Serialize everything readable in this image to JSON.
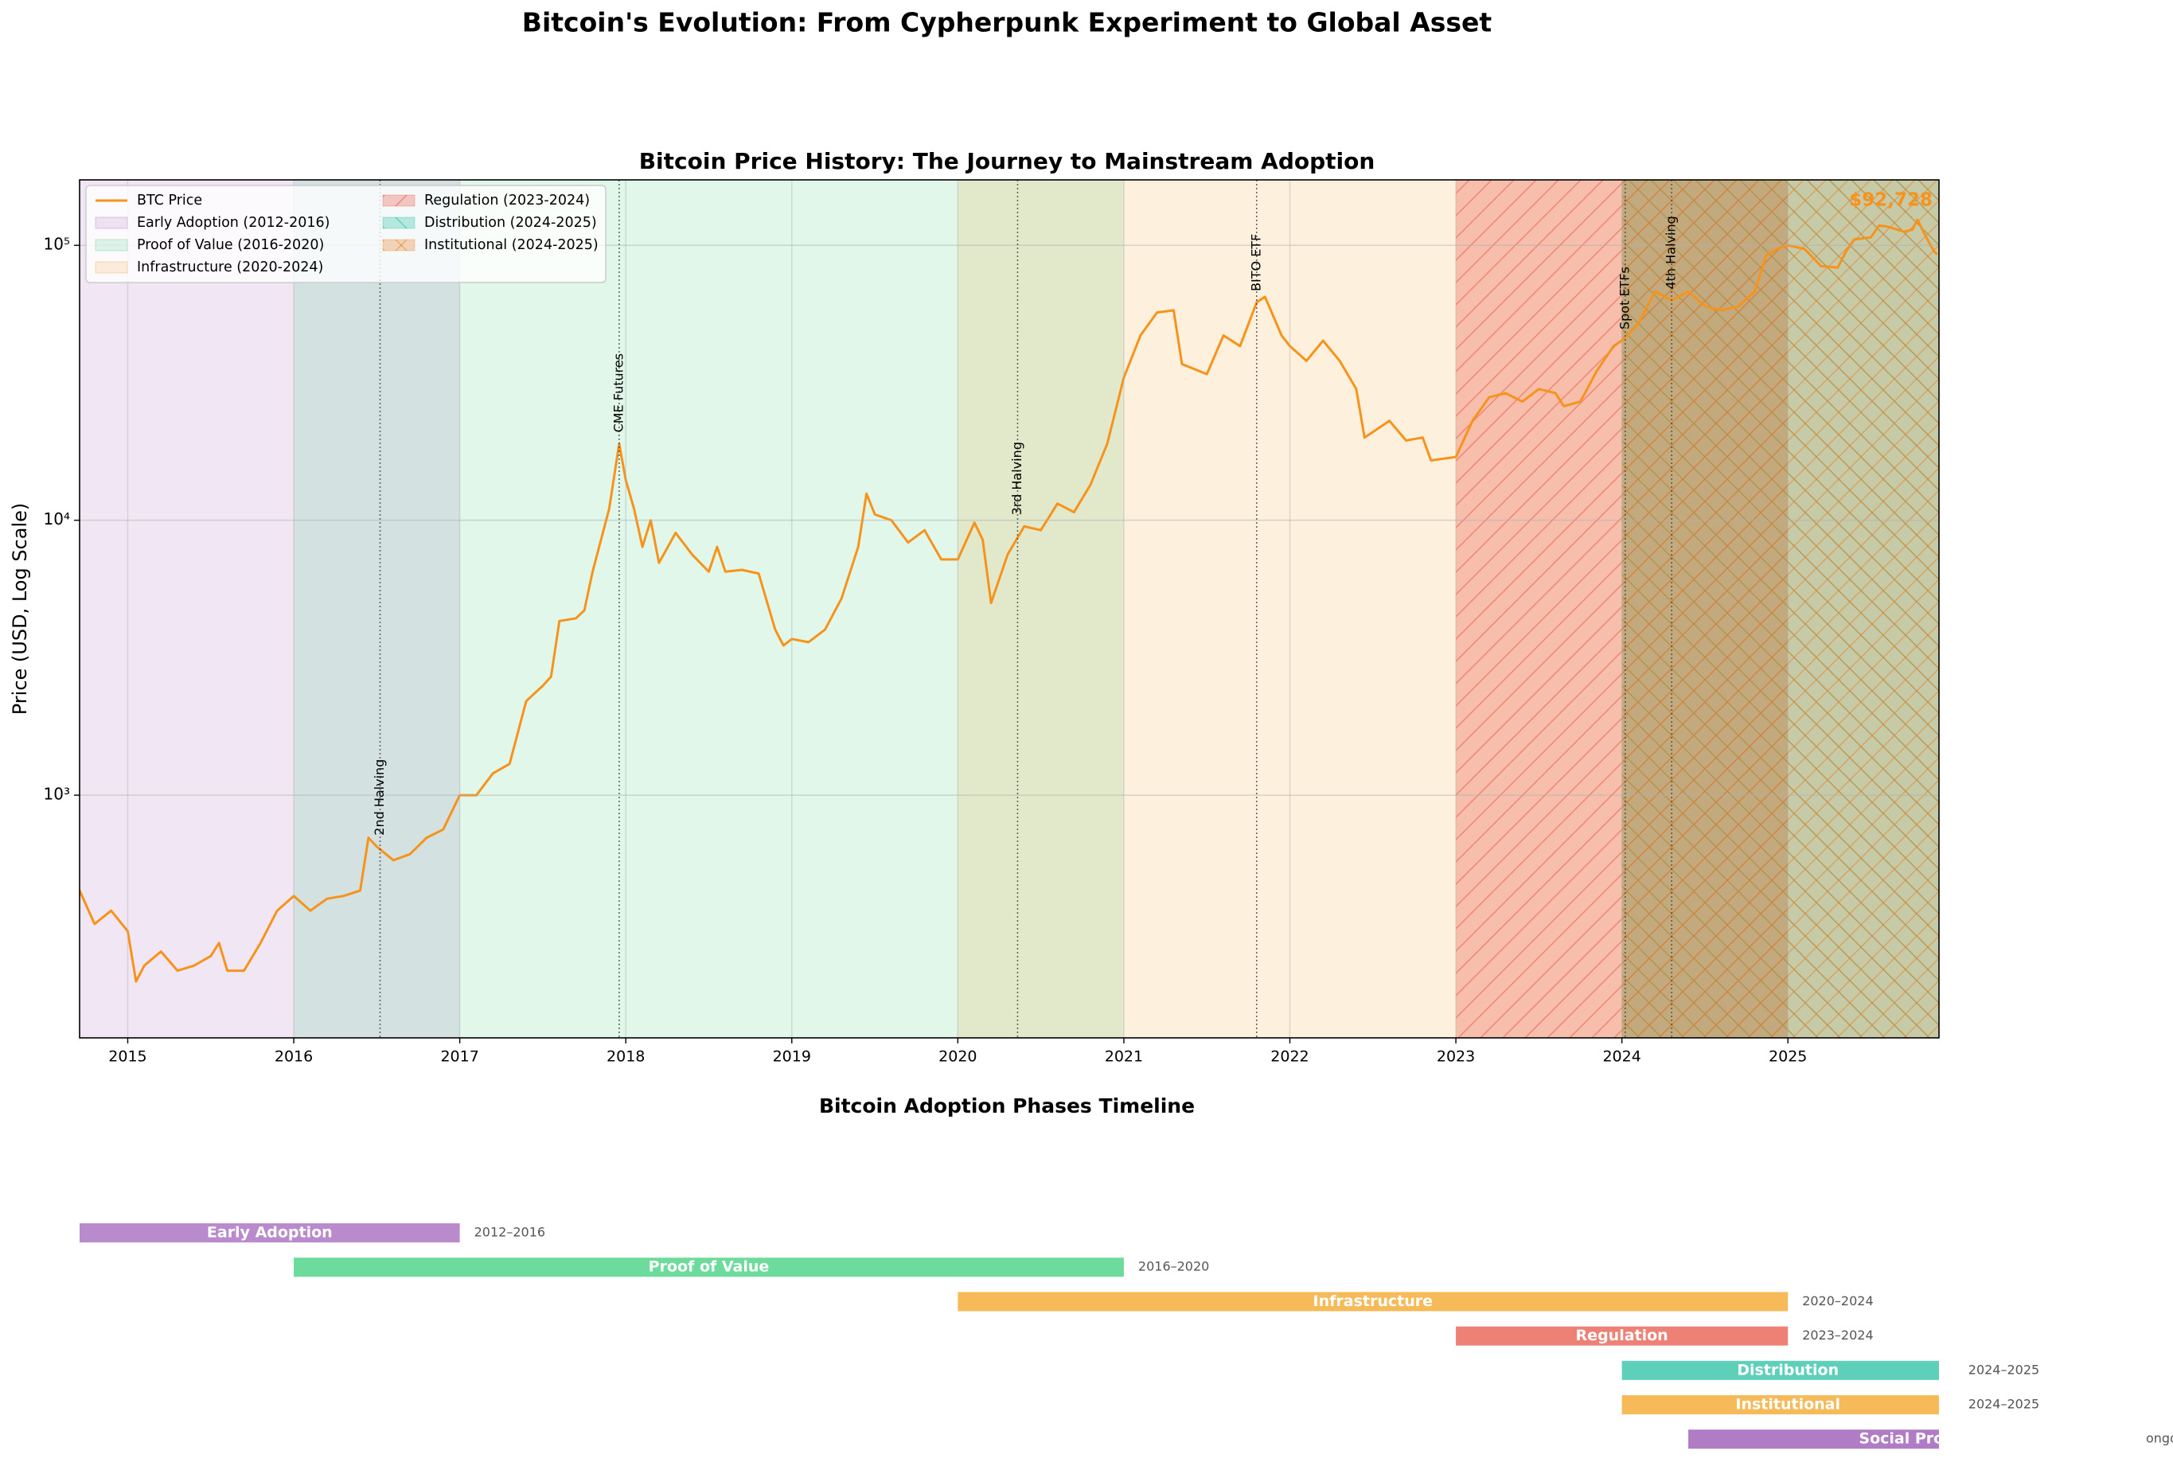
{
  "title": "Bitcoin's Evolution: From Cypherpunk Experiment to Global Asset",
  "chart_data": [
    {
      "type": "line",
      "title": "Bitcoin Price History: The Journey to Mainstream Adoption",
      "ylabel": "Price (USD, Log Scale)",
      "log_y": true,
      "grid": true,
      "legend": "upper left",
      "xlim": [
        2014.71,
        2025.91
      ],
      "xticks": [
        2015,
        2016,
        2017,
        2018,
        2019,
        2020,
        2021,
        2022,
        2023,
        2024,
        2025
      ],
      "ylim": [
        131,
        173000
      ],
      "yticks": [
        {
          "value": 1000,
          "label": "10³"
        },
        {
          "value": 10000,
          "label": "10⁴"
        },
        {
          "value": 100000,
          "label": "10⁵"
        }
      ],
      "series": [
        {
          "name": "BTC Price",
          "color": "#f7931a",
          "x": [
            2014.71,
            2014.8,
            2014.9,
            2015.0,
            2015.05,
            2015.1,
            2015.2,
            2015.3,
            2015.4,
            2015.5,
            2015.55,
            2015.6,
            2015.7,
            2015.8,
            2015.9,
            2016.0,
            2016.1,
            2016.2,
            2016.3,
            2016.4,
            2016.45,
            2016.5,
            2016.6,
            2016.7,
            2016.8,
            2016.9,
            2017.0,
            2017.1,
            2017.2,
            2017.3,
            2017.4,
            2017.5,
            2017.55,
            2017.6,
            2017.7,
            2017.75,
            2017.8,
            2017.9,
            2017.96,
            2018.0,
            2018.05,
            2018.1,
            2018.15,
            2018.2,
            2018.3,
            2018.4,
            2018.5,
            2018.55,
            2018.6,
            2018.7,
            2018.8,
            2018.9,
            2018.95,
            2019.0,
            2019.1,
            2019.2,
            2019.3,
            2019.4,
            2019.45,
            2019.5,
            2019.6,
            2019.7,
            2019.8,
            2019.9,
            2020.0,
            2020.1,
            2020.15,
            2020.2,
            2020.3,
            2020.4,
            2020.5,
            2020.6,
            2020.7,
            2020.8,
            2020.9,
            2021.0,
            2021.1,
            2021.2,
            2021.3,
            2021.35,
            2021.5,
            2021.6,
            2021.7,
            2021.8,
            2021.85,
            2021.95,
            2022.0,
            2022.1,
            2022.2,
            2022.3,
            2022.4,
            2022.45,
            2022.6,
            2022.7,
            2022.8,
            2022.85,
            2023.0,
            2023.1,
            2023.2,
            2023.3,
            2023.4,
            2023.5,
            2023.6,
            2023.65,
            2023.75,
            2023.85,
            2023.95,
            2024.0,
            2024.1,
            2024.2,
            2024.3,
            2024.4,
            2024.5,
            2024.6,
            2024.7,
            2024.8,
            2024.87,
            2024.95,
            2025.0,
            2025.1,
            2025.2,
            2025.3,
            2025.35,
            2025.4,
            2025.5,
            2025.55,
            2025.6,
            2025.7,
            2025.75,
            2025.78,
            2025.83,
            2025.88,
            2025.9
          ],
          "values": [
            450,
            340,
            380,
            320,
            210,
            240,
            270,
            230,
            240,
            260,
            290,
            230,
            230,
            290,
            380,
            430,
            380,
            420,
            430,
            450,
            700,
            650,
            580,
            610,
            700,
            750,
            1000,
            1000,
            1200,
            1300,
            2200,
            2500,
            2700,
            4300,
            4400,
            4700,
            6500,
            11000,
            19000,
            14000,
            11000,
            8000,
            10000,
            7000,
            9000,
            7500,
            6500,
            8000,
            6500,
            6600,
            6400,
            4000,
            3500,
            3700,
            3600,
            4000,
            5200,
            8000,
            12500,
            10500,
            10000,
            8300,
            9200,
            7200,
            7200,
            9800,
            8500,
            5000,
            7500,
            9500,
            9200,
            11500,
            10700,
            13500,
            19000,
            33000,
            47000,
            57000,
            58000,
            37000,
            34000,
            47000,
            43000,
            62000,
            65000,
            47000,
            43000,
            38000,
            45000,
            38000,
            30000,
            20000,
            23000,
            19500,
            20000,
            16500,
            17000,
            23000,
            28000,
            29000,
            27000,
            30000,
            29000,
            26000,
            27000,
            35000,
            43000,
            45000,
            52000,
            68000,
            63000,
            68000,
            60000,
            58000,
            60000,
            68000,
            92000,
            98000,
            100000,
            97000,
            84000,
            83000,
            95000,
            105000,
            107000,
            118000,
            117000,
            112000,
            114000,
            124000,
            108000,
            95000,
            92728
          ]
        }
      ],
      "annotation": "$92,728",
      "spans": [
        {
          "name": "Early Adoption (2012-2016)",
          "start": 2014.71,
          "end": 2017,
          "color": "#9b59b6",
          "hatch": null
        },
        {
          "name": "Proof of Value (2016-2020)",
          "start": 2016,
          "end": 2021,
          "color": "#2ecc71",
          "hatch": null
        },
        {
          "name": "Infrastructure (2020-2024)",
          "start": 2020,
          "end": 2025,
          "color": "#f39c12",
          "hatch": null
        },
        {
          "name": "Regulation (2023-2024)",
          "start": 2023,
          "end": 2025,
          "color": "#e74c3c",
          "hatch": "/"
        },
        {
          "name": "Distribution (2024-2025)",
          "start": 2024,
          "end": 2026,
          "color": "#1abc9c",
          "hatch": "\\"
        },
        {
          "name": "Institutional (2024-2025)",
          "start": 2024,
          "end": 2026,
          "color": "#e67e22",
          "hatch": "x"
        }
      ],
      "events": [
        {
          "label": "2nd Halving",
          "x": 2016.52
        },
        {
          "label": "CME Futures",
          "x": 2017.96
        },
        {
          "label": "3rd Halving",
          "x": 2020.36
        },
        {
          "label": "BITO ETF",
          "x": 2021.8
        },
        {
          "label": "Spot ETFs",
          "x": 2024.02
        },
        {
          "label": "4th Halving",
          "x": 2024.3
        }
      ]
    },
    {
      "type": "timeline",
      "title": "Bitcoin Adoption Phases Timeline",
      "xlim": [
        2014.71,
        2025.91
      ],
      "bars": [
        {
          "name": "Early Adoption",
          "period": "2012–2016",
          "start": 2014.71,
          "end": 2017,
          "color": "#9b59b6"
        },
        {
          "name": "Proof of Value",
          "period": "2016–2020",
          "start": 2016,
          "end": 2021,
          "color": "#2ecc71"
        },
        {
          "name": "Infrastructure",
          "period": "2020–2024",
          "start": 2020,
          "end": 2025,
          "color": "#f39c12"
        },
        {
          "name": "Regulation",
          "period": "2023–2024",
          "start": 2023,
          "end": 2025,
          "color": "#e74c3c"
        },
        {
          "name": "Distribution",
          "period": "2024–2025",
          "start": 2024,
          "end": 2026,
          "color": "#1abc9c"
        },
        {
          "name": "Institutional",
          "period": "2024–2025",
          "start": 2024,
          "end": 2026,
          "color": "#f39c12"
        },
        {
          "name": "Social Proof",
          "period": "ongoing",
          "start": 2024.4,
          "end": 2027.07,
          "color": "#8e44ad"
        }
      ]
    }
  ]
}
